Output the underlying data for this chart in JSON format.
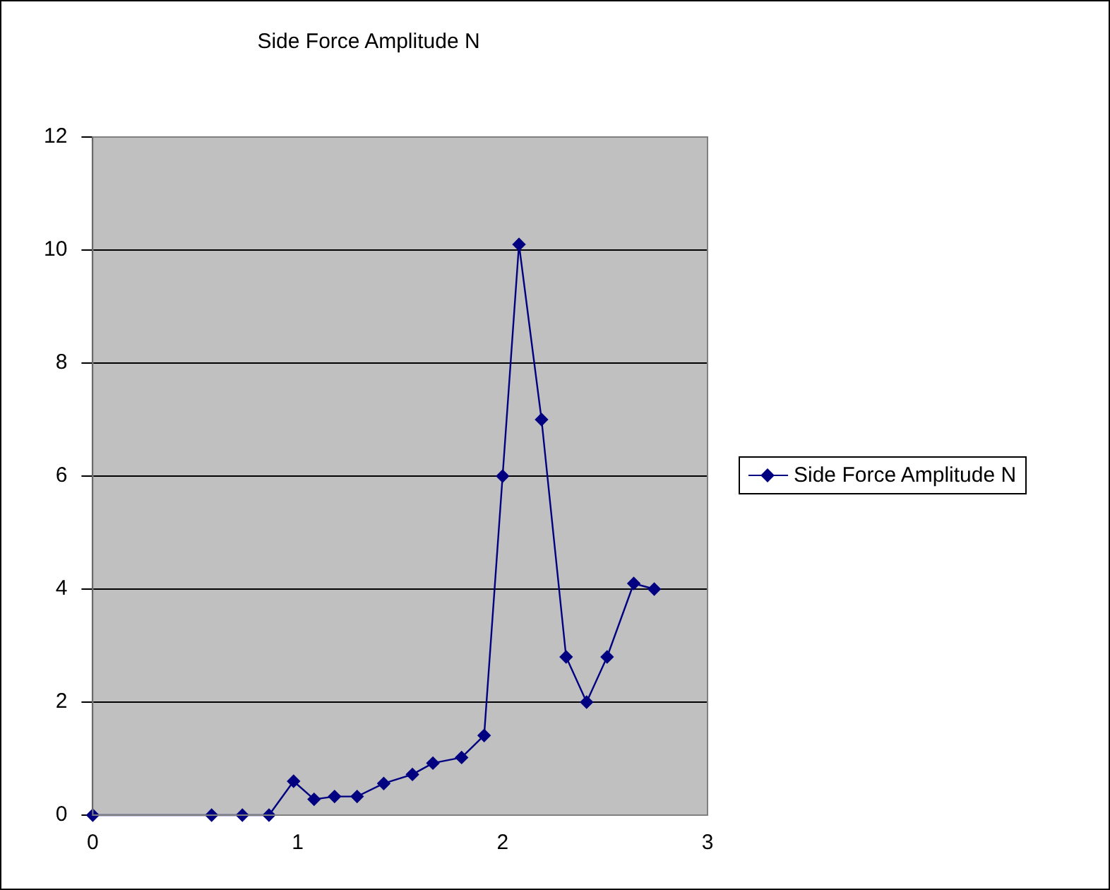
{
  "chart_data": {
    "type": "line",
    "title": "Side Force Amplitude N",
    "x": [
      0,
      0.58,
      0.73,
      0.86,
      0.98,
      1.08,
      1.18,
      1.29,
      1.42,
      1.56,
      1.66,
      1.8,
      1.91,
      2.0,
      2.08,
      2.19,
      2.31,
      2.41,
      2.51,
      2.64,
      2.74
    ],
    "series": [
      {
        "name": "Side Force Amplitude N",
        "color": "#000080",
        "values": [
          0,
          0,
          0,
          0,
          0.6,
          0.28,
          0.33,
          0.33,
          0.56,
          0.72,
          0.92,
          1.02,
          1.41,
          6,
          10.1,
          7,
          2.8,
          2,
          2.8,
          4.1,
          4
        ]
      }
    ],
    "xlim": [
      0,
      3
    ],
    "xticks": [
      0,
      1,
      2,
      3
    ],
    "ylim": [
      0,
      12
    ],
    "yticks": [
      0,
      2,
      4,
      6,
      8,
      10,
      12
    ],
    "grid": "y",
    "legend": "right",
    "marker": "diamond",
    "line_style": "solid"
  }
}
